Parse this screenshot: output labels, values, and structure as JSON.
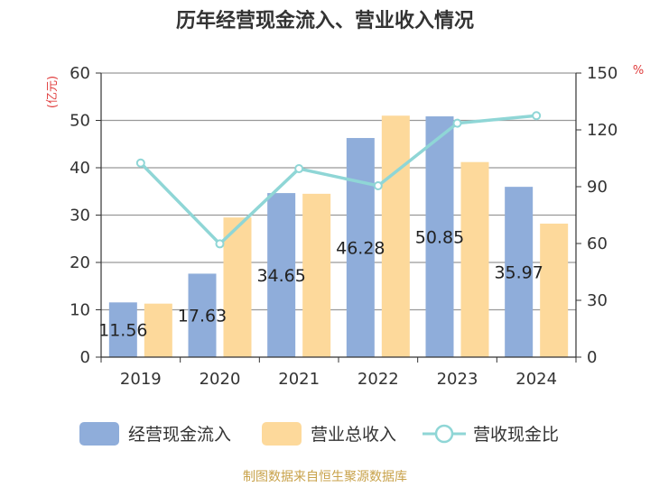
{
  "chart_data": {
    "type": "bar",
    "title": "历年经营现金流入、营业收入情况",
    "categories": [
      "2019",
      "2020",
      "2021",
      "2022",
      "2023",
      "2024"
    ],
    "series": [
      {
        "name": "经营现金流入",
        "type": "bar",
        "axis": "left",
        "color": "#8fadda",
        "values": [
          11.56,
          17.63,
          34.65,
          46.28,
          50.85,
          35.97
        ],
        "labels": [
          "11.56",
          "17.63",
          "34.65",
          "46.28",
          "50.85",
          "35.97"
        ]
      },
      {
        "name": "营业总收入",
        "type": "bar",
        "axis": "left",
        "color": "#fdd99b",
        "values": [
          11.3,
          29.5,
          34.5,
          51.0,
          41.2,
          28.2
        ]
      },
      {
        "name": "营收现金比",
        "type": "line",
        "axis": "right",
        "color": "#8fd6d6",
        "values": [
          102.5,
          59.8,
          99.5,
          90.5,
          123.5,
          127.5
        ]
      }
    ],
    "y_left": {
      "label": "(亿元)",
      "min": 0,
      "max": 60,
      "ticks": [
        "0",
        "10",
        "20",
        "30",
        "40",
        "50",
        "60"
      ]
    },
    "y_right": {
      "label": "%",
      "min": 0,
      "max": 150,
      "ticks": [
        "0",
        "30",
        "60",
        "90",
        "120",
        "150"
      ]
    },
    "grid": true,
    "legend_position": "bottom",
    "source": "制图数据来自恒生聚源数据库"
  }
}
